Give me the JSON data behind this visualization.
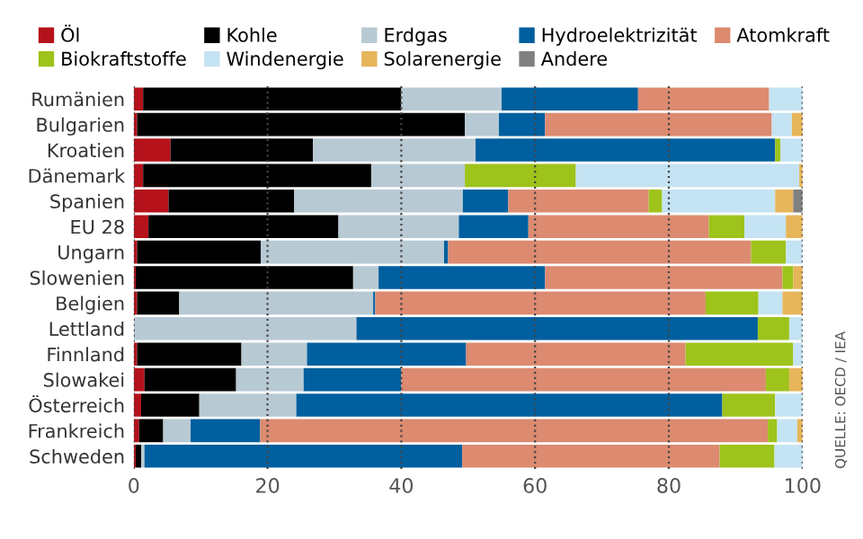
{
  "chart_data": {
    "type": "bar",
    "orientation": "horizontal",
    "stacked": true,
    "categories": [
      "Rumänien",
      "Bulgarien",
      "Kroatien",
      "Dänemark",
      "Spanien",
      "EU 28",
      "Ungarn",
      "Slowenien",
      "Belgien",
      "Lettland",
      "Finnland",
      "Slowakei",
      "Österreich",
      "Frankreich",
      "Schweden"
    ],
    "series": [
      {
        "name": "Öl",
        "color": "#b5121b",
        "values": [
          1.4,
          0.5,
          5.5,
          1.4,
          5.2,
          2.2,
          0.5,
          0.3,
          0.5,
          0,
          0.5,
          1.6,
          1.1,
          0.8,
          0.3
        ]
      },
      {
        "name": "Kohle",
        "color": "#000000",
        "values": [
          38.6,
          49,
          21.3,
          34.1,
          18.8,
          28.4,
          18.5,
          32.5,
          6.3,
          0,
          15.6,
          13.7,
          8.7,
          3.6,
          0.8
        ]
      },
      {
        "name": "Erdgas",
        "color": "#b7c9d3",
        "values": [
          15,
          5.1,
          24.3,
          14,
          25.2,
          18,
          27.4,
          3.8,
          29,
          33.3,
          9.8,
          10.1,
          14.5,
          4.1,
          0.5
        ]
      },
      {
        "name": "Hydroelektrizität",
        "color": "#005f9e",
        "values": [
          20.4,
          6.9,
          44.8,
          0,
          6.8,
          10.4,
          0.6,
          24.9,
          0.3,
          60,
          23.8,
          14.6,
          63.7,
          10.4,
          47.5
        ]
      },
      {
        "name": "Atomkraft",
        "color": "#dc8a70",
        "values": [
          19.6,
          33.9,
          0,
          0,
          21,
          27,
          45.3,
          35.5,
          49.4,
          0,
          32.8,
          54.5,
          0,
          75.9,
          38.5
        ]
      },
      {
        "name": "Biokraftstoffe",
        "color": "#9ec31b",
        "values": [
          0,
          0,
          0.8,
          16.6,
          2,
          5.3,
          5.2,
          1.6,
          7.9,
          4.7,
          16.1,
          3.5,
          7.9,
          1.4,
          8.2
        ]
      },
      {
        "name": "Windenergie",
        "color": "#c4e3f3",
        "values": [
          5,
          3,
          3.3,
          33.4,
          16.9,
          6.2,
          2.5,
          0,
          3.6,
          2,
          1.4,
          0,
          4.1,
          3,
          4.4
        ]
      },
      {
        "name": "Solarenergie",
        "color": "#e7b55a",
        "values": [
          0,
          1.6,
          0,
          0.5,
          2.7,
          2.5,
          0,
          1.4,
          3,
          0,
          0,
          2,
          0,
          0.8,
          0
        ]
      },
      {
        "name": "Andere",
        "color": "#808080",
        "values": [
          0,
          0,
          0,
          0,
          1.4,
          0,
          0,
          0,
          0,
          0,
          0,
          0,
          0,
          0,
          0
        ]
      }
    ],
    "xlim": [
      0,
      100
    ],
    "xticks": [
      0,
      20,
      40,
      60,
      80,
      100
    ],
    "grid": "x",
    "legend": "top",
    "annotations": [
      "QUELLE: OECD / IEA"
    ]
  }
}
